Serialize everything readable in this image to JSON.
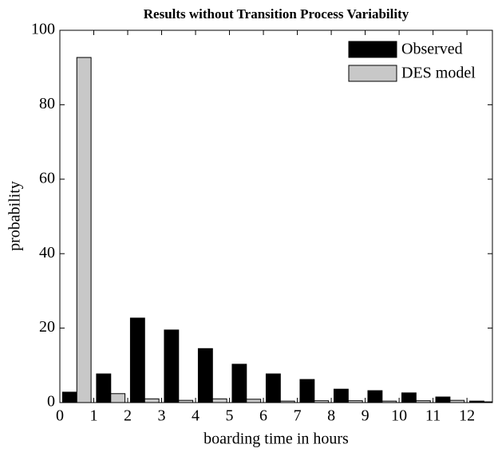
{
  "chart_data": {
    "type": "bar",
    "title": "Results without Transition Process Variability",
    "x_label": "boarding time in hours",
    "y_label": "probability",
    "x": [
      0.5,
      1.5,
      2.5,
      3.5,
      4.5,
      5.5,
      6.5,
      7.5,
      8.5,
      9.5,
      10.5,
      11.5,
      12.5
    ],
    "series": [
      {
        "name": "Observed",
        "color": "#000000",
        "values": [
          2.8,
          7.7,
          22.7,
          19.5,
          14.5,
          10.3,
          7.7,
          6.2,
          3.6,
          3.2,
          2.6,
          1.5,
          0.4
        ]
      },
      {
        "name": "DES model",
        "color": "#c8c8c8",
        "values": [
          92.7,
          2.4,
          1.0,
          0.6,
          1.0,
          0.9,
          0.4,
          0.5,
          0.5,
          0.4,
          0.5,
          0.6,
          0.2
        ]
      }
    ],
    "xlim": [
      0,
      12.75
    ],
    "ylim": [
      0,
      100
    ],
    "xticks": [
      0,
      1,
      2,
      3,
      4,
      5,
      6,
      7,
      8,
      9,
      10,
      11,
      12
    ],
    "yticks": [
      0,
      20,
      40,
      60,
      80,
      100
    ],
    "legend": "upper right",
    "grid": false
  }
}
